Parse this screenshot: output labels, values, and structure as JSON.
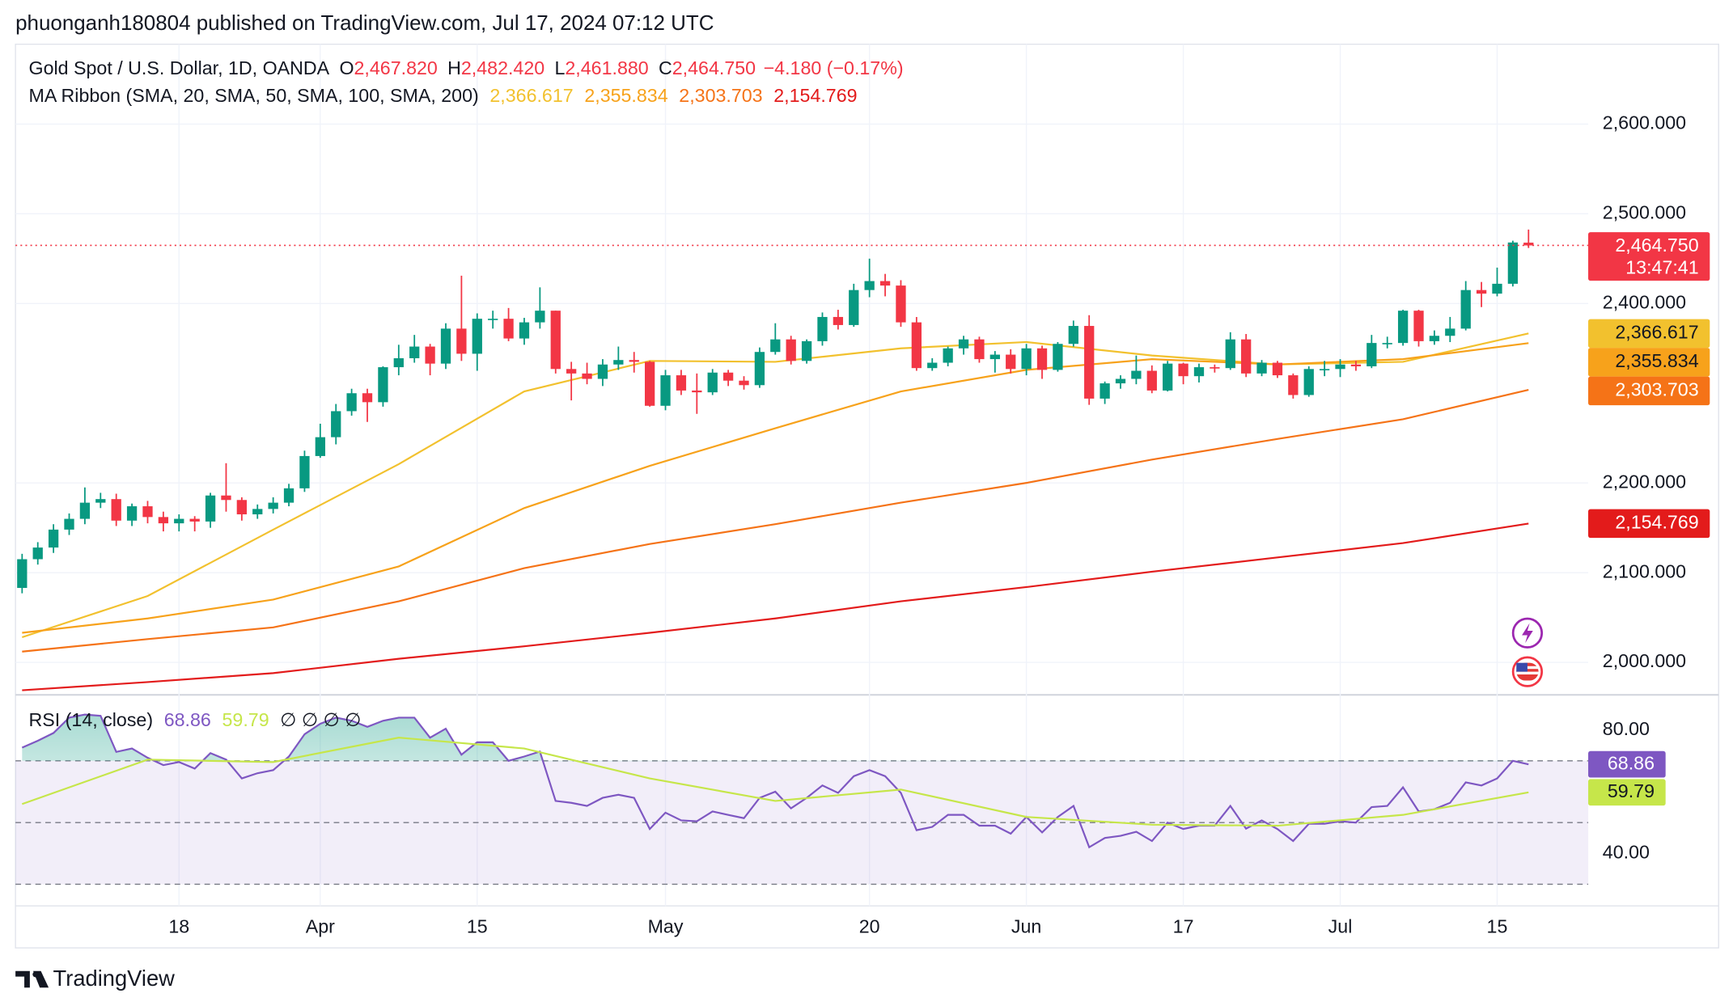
{
  "header": {
    "published": "phuonganh180804 published on TradingView.com, Jul 17, 2024 07:12 UTC"
  },
  "footer": {
    "brand": "TradingView"
  },
  "chart_data": [
    {
      "type": "candlestick",
      "title": "Gold Spot / U.S. Dollar, 1D, OANDA",
      "ohlc_legend": [
        {
          "key": "O",
          "label": "2,467.820"
        },
        {
          "key": "H",
          "label": "2,482.420"
        },
        {
          "key": "L",
          "label": "2,461.880"
        },
        {
          "key": "C",
          "label": "2,464.750"
        }
      ],
      "change": "−4.180 (−0.17%)",
      "last_label": "2,464.750",
      "countdown": "13:47:41",
      "up_color": "#089981",
      "down_color": "#f23645",
      "categories": [
        null,
        null,
        null,
        null,
        null,
        null,
        null,
        null,
        null,
        null,
        "18",
        null,
        null,
        null,
        null,
        null,
        null,
        null,
        null,
        "Apr",
        null,
        null,
        null,
        null,
        null,
        null,
        null,
        null,
        null,
        "15",
        null,
        null,
        null,
        null,
        null,
        null,
        null,
        null,
        null,
        null,
        null,
        "May",
        null,
        null,
        null,
        null,
        null,
        null,
        null,
        null,
        null,
        null,
        null,
        null,
        "20",
        null,
        null,
        null,
        null,
        null,
        null,
        null,
        null,
        null,
        "Jun",
        null,
        null,
        null,
        null,
        null,
        null,
        null,
        null,
        null,
        "17",
        null,
        null,
        null,
        null,
        null,
        null,
        null,
        null,
        null,
        "Jul",
        null,
        null,
        null,
        null,
        null,
        null,
        null,
        null,
        null,
        "15",
        null,
        null
      ],
      "open": [
        2083,
        2115,
        2128,
        2148,
        2160,
        2178,
        2182,
        2158,
        2174,
        2162,
        2155,
        2160,
        2157,
        2186,
        2181,
        2165,
        2171,
        2178,
        2194,
        2230,
        2251,
        2280,
        2300,
        2290,
        2329,
        2339,
        2352,
        2333,
        2372,
        2344,
        2383,
        2383,
        2361,
        2379,
        2392,
        2327,
        2322,
        2316,
        2332,
        2337,
        2335,
        2286,
        2320,
        2303,
        2301,
        2323,
        2314,
        2309,
        2346,
        2360,
        2336,
        2358,
        2385,
        2376,
        2415,
        2425,
        2420,
        2379,
        2328,
        2334,
        2350,
        2360,
        2338,
        2343,
        2327,
        2350,
        2326,
        2355,
        2375,
        2294,
        2311,
        2316,
        2325,
        2303,
        2333,
        2319,
        2329,
        2328,
        2360,
        2322,
        2334,
        2320,
        2298,
        2327,
        2327,
        2332,
        2330,
        2356,
        2356,
        2392,
        2358,
        2364,
        2372,
        2415,
        2411,
        2422,
        2467.82
      ],
      "high": [
        2121,
        2134,
        2154,
        2166,
        2195,
        2189,
        2188,
        2177,
        2180,
        2168,
        2165,
        2163,
        2189,
        2222,
        2184,
        2176,
        2184,
        2199,
        2236,
        2266,
        2288,
        2305,
        2305,
        2330,
        2354,
        2365,
        2355,
        2378,
        2431,
        2389,
        2392,
        2395,
        2384,
        2418,
        2392,
        2335,
        2334,
        2338,
        2352,
        2346,
        2336,
        2326,
        2326,
        2322,
        2327,
        2326,
        2319,
        2351,
        2378,
        2364,
        2360,
        2390,
        2393,
        2422,
        2450,
        2433,
        2426,
        2385,
        2339,
        2352,
        2364,
        2363,
        2347,
        2349,
        2355,
        2353,
        2357,
        2381,
        2387,
        2313,
        2320,
        2342,
        2331,
        2336,
        2334,
        2333,
        2332,
        2368,
        2366,
        2337,
        2336,
        2322,
        2330,
        2336,
        2338,
        2336,
        2365,
        2363,
        2393,
        2393,
        2370,
        2385,
        2425,
        2424,
        2440,
        2470,
        2482.42
      ],
      "low": [
        2077,
        2109,
        2122,
        2142,
        2154,
        2172,
        2152,
        2152,
        2155,
        2146,
        2146,
        2146,
        2150,
        2168,
        2158,
        2160,
        2166,
        2174,
        2190,
        2228,
        2243,
        2275,
        2268,
        2285,
        2320,
        2334,
        2320,
        2327,
        2336,
        2325,
        2372,
        2358,
        2354,
        2372,
        2322,
        2292,
        2310,
        2308,
        2326,
        2323,
        2285,
        2281,
        2298,
        2277,
        2298,
        2308,
        2304,
        2306,
        2343,
        2332,
        2333,
        2353,
        2371,
        2374,
        2407,
        2408,
        2374,
        2325,
        2325,
        2330,
        2343,
        2334,
        2323,
        2322,
        2320,
        2316,
        2324,
        2352,
        2287,
        2288,
        2305,
        2310,
        2300,
        2302,
        2310,
        2312,
        2323,
        2326,
        2318,
        2319,
        2317,
        2294,
        2296,
        2319,
        2318,
        2325,
        2328,
        2350,
        2353,
        2352,
        2354,
        2357,
        2370,
        2396,
        2408,
        2419,
        2461.88
      ],
      "close": [
        2115,
        2128,
        2148,
        2160,
        2178,
        2182,
        2158,
        2174,
        2162,
        2155,
        2160,
        2157,
        2186,
        2181,
        2165,
        2171,
        2178,
        2194,
        2230,
        2251,
        2280,
        2300,
        2290,
        2329,
        2339,
        2352,
        2333,
        2372,
        2344,
        2383,
        2383,
        2361,
        2379,
        2392,
        2327,
        2322,
        2316,
        2332,
        2337,
        2335,
        2286,
        2320,
        2303,
        2301,
        2323,
        2314,
        2309,
        2346,
        2360,
        2336,
        2358,
        2385,
        2376,
        2415,
        2425,
        2420,
        2379,
        2328,
        2334,
        2350,
        2360,
        2338,
        2343,
        2327,
        2350,
        2326,
        2355,
        2375,
        2294,
        2311,
        2316,
        2325,
        2303,
        2333,
        2319,
        2329,
        2328,
        2360,
        2322,
        2334,
        2320,
        2298,
        2327,
        2327,
        2332,
        2330,
        2356,
        2356,
        2392,
        2358,
        2364,
        2372,
        2415,
        2411,
        2422,
        2468,
        2464.75
      ],
      "ma_title": "MA Ribbon (SMA, 20, SMA, 50, SMA, 100, SMA, 200)",
      "ma_series": [
        {
          "color": "#f2c12e",
          "label": "2,366.617",
          "x": [
            0,
            8,
            16,
            24,
            32,
            40,
            48,
            56,
            64,
            72,
            80,
            88,
            96
          ],
          "values": [
            2028,
            2074,
            2148,
            2221,
            2302,
            2336,
            2335,
            2350,
            2357,
            2342,
            2332,
            2335,
            2366.617
          ]
        },
        {
          "color": "#f7a21b",
          "label": "2,355.834",
          "x": [
            0,
            8,
            16,
            24,
            32,
            40,
            48,
            56,
            64,
            72,
            80,
            88,
            96
          ],
          "values": [
            2033,
            2049,
            2070,
            2107,
            2172,
            2219,
            2261,
            2302,
            2326,
            2338,
            2332,
            2338,
            2355.834
          ]
        },
        {
          "color": "#f57317",
          "label": "2,303.703",
          "x": [
            0,
            8,
            16,
            24,
            32,
            40,
            48,
            56,
            64,
            72,
            80,
            88,
            96
          ],
          "values": [
            2012,
            2026,
            2039,
            2068,
            2105,
            2132,
            2154,
            2178,
            2200,
            2226,
            2249,
            2271,
            2303.703
          ]
        },
        {
          "color": "#e31b1b",
          "label": "2,154.769",
          "x": [
            0,
            8,
            16,
            24,
            32,
            40,
            48,
            56,
            64,
            72,
            80,
            88,
            96
          ],
          "values": [
            1969,
            1978,
            1988,
            2004,
            2018,
            2033,
            2049,
            2068,
            2084,
            2101,
            2117,
            2133,
            2154.769
          ]
        }
      ],
      "ylim": [
        1965,
        2689
      ],
      "yticks": [
        {
          "value": 2000,
          "label": "2,000.000"
        },
        {
          "value": 2100,
          "label": "2,100.000"
        },
        {
          "value": 2200,
          "label": "2,200.000"
        },
        {
          "value": 2400,
          "label": "2,400.000"
        },
        {
          "value": 2500,
          "label": "2,500.000"
        },
        {
          "value": 2600,
          "label": "2,600.000"
        }
      ],
      "grid": true
    },
    {
      "type": "line",
      "title": "RSI (14, close)",
      "placeholders": "∅ ∅ ∅ ∅",
      "ylim": [
        23,
        91
      ],
      "yticks": [
        {
          "value": 80,
          "label": "80.00"
        },
        {
          "value": 40,
          "label": "40.00"
        }
      ],
      "levels": [
        70,
        50,
        30
      ],
      "series": [
        {
          "color": "#7e57c2",
          "label": "68.86",
          "values": [
            74.3,
            76.5,
            79,
            84,
            85,
            84.6,
            72.9,
            74,
            71,
            68.6,
            69.6,
            67.5,
            72.5,
            70.4,
            64.3,
            66,
            67,
            71.4,
            78.6,
            82,
            84,
            83,
            81,
            83,
            84,
            84,
            77.5,
            80.4,
            72,
            76,
            76,
            70,
            71.4,
            73,
            57,
            56.4,
            55.4,
            58,
            59,
            58,
            47.9,
            53.2,
            50.7,
            50.4,
            53.6,
            52.5,
            51.4,
            58,
            60,
            54.6,
            58,
            62,
            59.6,
            65,
            67,
            65,
            59.6,
            47.5,
            48.6,
            52.5,
            52.5,
            49,
            49,
            46.4,
            51.8,
            46.8,
            51.8,
            55.4,
            42,
            45,
            45.7,
            47,
            44,
            50,
            47.9,
            49,
            49,
            55.4,
            48,
            50.7,
            47.9,
            44,
            49.6,
            49.6,
            50.4,
            50,
            55,
            55.4,
            61.4,
            53.6,
            54.3,
            56.4,
            63,
            62,
            64.3,
            70,
            68.86
          ]
        },
        {
          "color": "#c6e64a",
          "label": "59.79",
          "x": [
            0,
            8,
            16,
            24,
            32,
            40,
            48,
            56,
            64,
            72,
            80,
            88,
            96
          ],
          "values": [
            56,
            70.4,
            69.6,
            77.5,
            74,
            64.3,
            57,
            60.7,
            51.8,
            49.3,
            49,
            52.5,
            59.79
          ]
        }
      ]
    }
  ]
}
